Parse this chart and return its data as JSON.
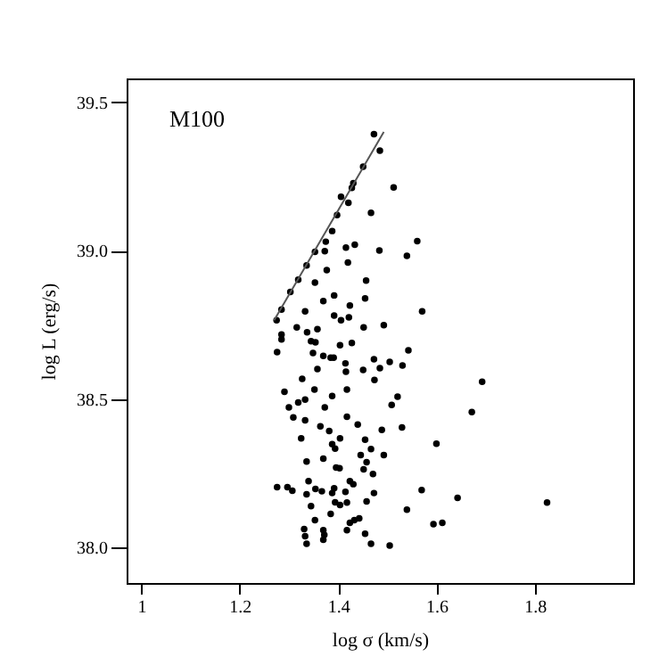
{
  "chart_data": {
    "type": "scatter",
    "title": "M100",
    "xlabel": "log σ (km/s)",
    "ylabel": "log L (erg/s)",
    "xlim": [
      0.97,
      2.0
    ],
    "ylim": [
      37.88,
      39.58
    ],
    "xticks": [
      1,
      1.2,
      1.4,
      1.6,
      1.8
    ],
    "yticks": [
      {
        "value": 38,
        "label": "38.0"
      },
      {
        "value": 38.5,
        "label": "38.5"
      },
      {
        "value": 39,
        "label": "39.0"
      },
      {
        "value": 39.5,
        "label": "39.5"
      }
    ],
    "marker": "circle",
    "series": [
      {
        "color": "#000000",
        "x": [
          1.473,
          1.485,
          1.451,
          1.431,
          1.428,
          1.513,
          1.406,
          1.421,
          1.467,
          1.398,
          1.388,
          1.375,
          1.416,
          1.434,
          1.484,
          1.561,
          1.353,
          1.373,
          1.54,
          1.42,
          1.336,
          1.377,
          1.319,
          1.457,
          1.353,
          1.392,
          1.37,
          1.424,
          1.455,
          1.303,
          1.285,
          1.333,
          1.571,
          1.392,
          1.406,
          1.422,
          1.452,
          1.493,
          1.316,
          1.337,
          1.358,
          1.275,
          1.285,
          1.285,
          1.345,
          1.354,
          1.404,
          1.428,
          1.543,
          1.276,
          1.349,
          1.37,
          1.385,
          1.391,
          1.473,
          1.505,
          1.531,
          1.415,
          1.416,
          1.358,
          1.451,
          1.485,
          1.327,
          1.474,
          1.352,
          1.418,
          1.291,
          1.333,
          1.319,
          1.388,
          1.521,
          1.3,
          1.373,
          1.509,
          1.309,
          1.418,
          1.333,
          1.44,
          1.364,
          1.382,
          1.489,
          1.53,
          1.325,
          1.404,
          1.455,
          1.388,
          1.394,
          1.467,
          1.446,
          1.493,
          1.6,
          1.37,
          1.336,
          1.458,
          1.396,
          1.403,
          1.452,
          1.471,
          1.34,
          1.424,
          1.431,
          1.276,
          1.297,
          1.307,
          1.354,
          1.367,
          1.392,
          1.388,
          1.415,
          1.336,
          1.473,
          1.57,
          1.643,
          1.394,
          1.404,
          1.418,
          1.345,
          1.458,
          1.54,
          1.385,
          1.353,
          1.433,
          1.443,
          1.424,
          1.594,
          1.612,
          1.418,
          1.331,
          1.37,
          1.372,
          1.333,
          1.455,
          1.37,
          1.336,
          1.467,
          1.505,
          1.693,
          1.672,
          1.825
        ],
        "values": [
          39.392,
          39.337,
          39.283,
          39.227,
          39.211,
          39.213,
          39.181,
          39.161,
          39.127,
          39.12,
          39.066,
          39.03,
          39.01,
          39.02,
          39.0,
          39.032,
          38.996,
          38.998,
          38.982,
          38.96,
          38.95,
          38.934,
          38.902,
          38.899,
          38.892,
          38.849,
          38.83,
          38.815,
          38.839,
          38.861,
          38.801,
          38.795,
          38.795,
          38.781,
          38.765,
          38.775,
          38.741,
          38.749,
          38.741,
          38.725,
          38.735,
          38.765,
          38.717,
          38.701,
          38.695,
          38.691,
          38.681,
          38.689,
          38.664,
          38.658,
          38.655,
          38.645,
          38.639,
          38.639,
          38.634,
          38.625,
          38.613,
          38.62,
          38.592,
          38.601,
          38.598,
          38.604,
          38.568,
          38.564,
          38.532,
          38.532,
          38.524,
          38.498,
          38.488,
          38.51,
          38.508,
          38.472,
          38.472,
          38.48,
          38.438,
          38.44,
          38.428,
          38.414,
          38.408,
          38.392,
          38.396,
          38.404,
          38.367,
          38.367,
          38.363,
          38.348,
          38.333,
          38.331,
          38.311,
          38.311,
          38.349,
          38.299,
          38.289,
          38.287,
          38.269,
          38.267,
          38.263,
          38.247,
          38.223,
          38.223,
          38.213,
          38.203,
          38.203,
          38.191,
          38.197,
          38.189,
          38.199,
          38.183,
          38.187,
          38.179,
          38.183,
          38.193,
          38.167,
          38.152,
          38.143,
          38.151,
          38.139,
          38.155,
          38.127,
          38.113,
          38.092,
          38.092,
          38.098,
          38.083,
          38.078,
          38.083,
          38.058,
          38.062,
          38.058,
          38.042,
          38.038,
          38.046,
          38.026,
          38.012,
          38.012,
          38.006,
          38.558,
          38.456,
          38.151
        ]
      },
      {
        "type": "line",
        "marker": "none",
        "color": "#555555",
        "x": [
          1.27,
          1.493
        ],
        "values": [
          38.765,
          39.4
        ]
      }
    ]
  }
}
